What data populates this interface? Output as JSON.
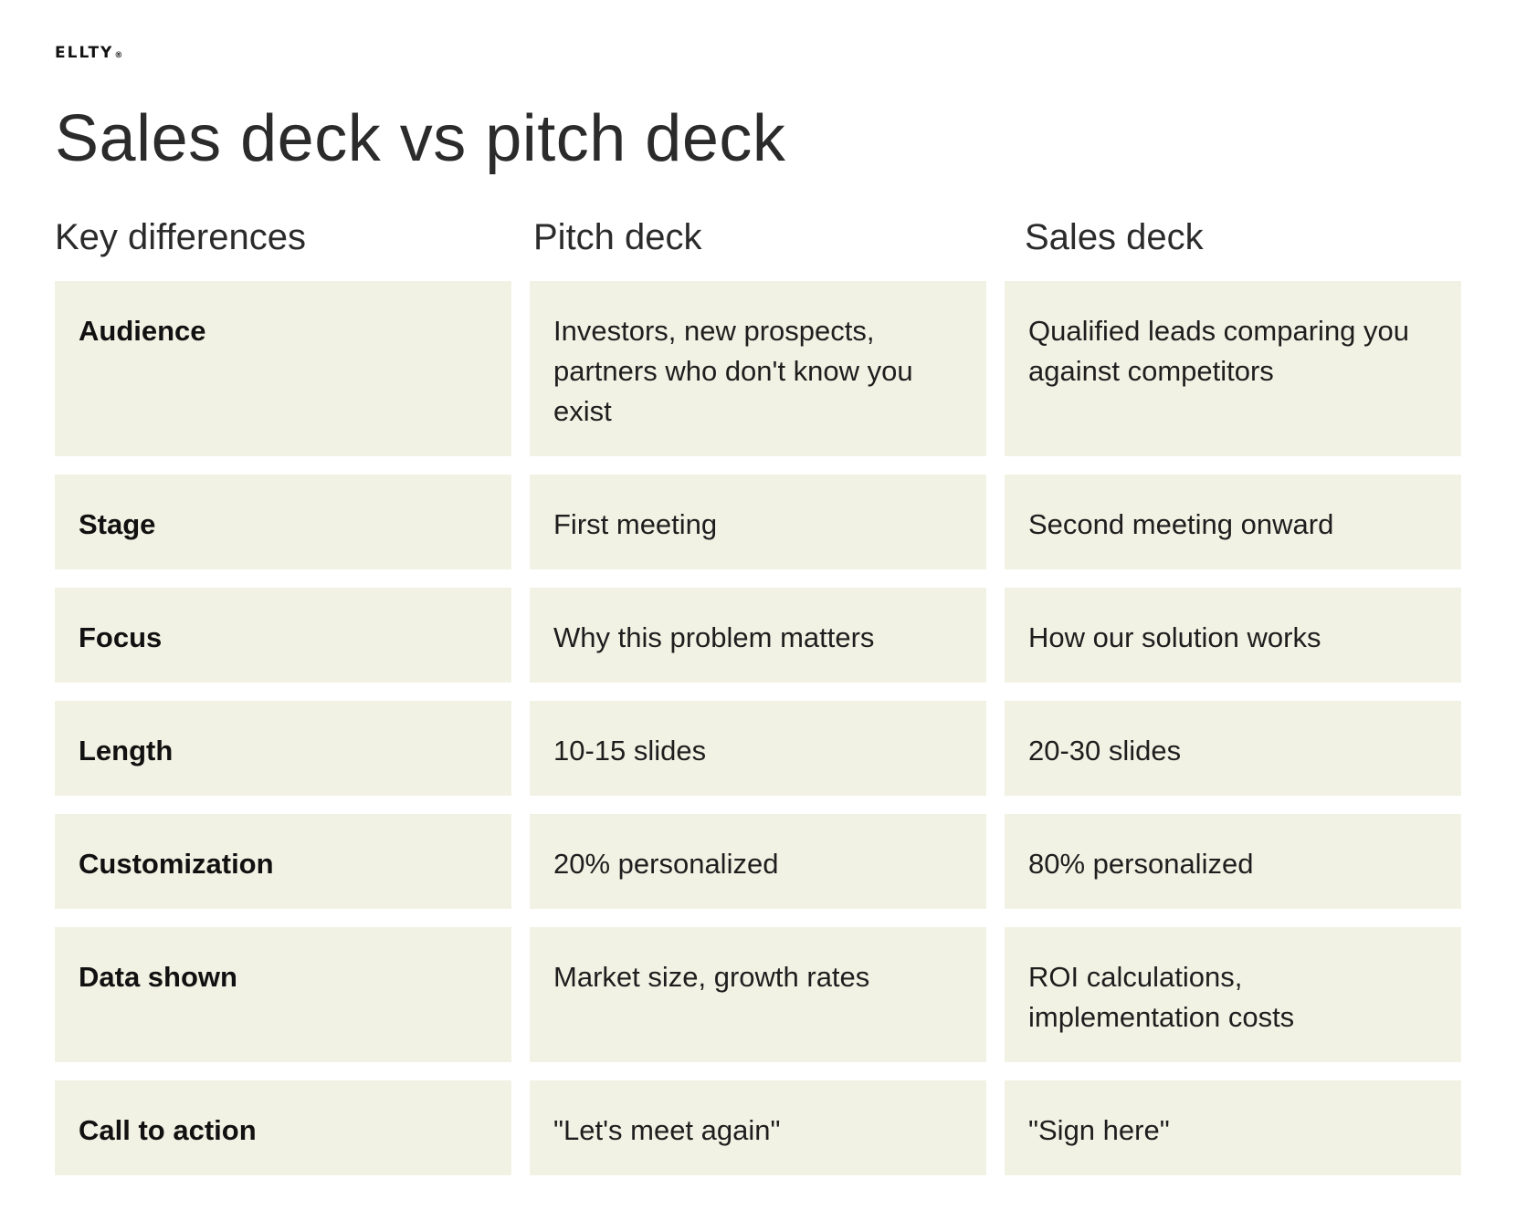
{
  "brand": {
    "logo_text": "ELLTY",
    "logo_mark": "®"
  },
  "title": "Sales deck vs pitch deck",
  "columns": {
    "key": "Key differences",
    "pitch": "Pitch deck",
    "sales": "Sales deck"
  },
  "rows": [
    {
      "label": "Audience",
      "pitch": "Investors, new prospects, partners who don't know you exist",
      "sales": "Qualified leads comparing you against competitors"
    },
    {
      "label": "Stage",
      "pitch": "First meeting",
      "sales": "Second meeting onward"
    },
    {
      "label": "Focus",
      "pitch": "Why this problem matters",
      "sales": "How our solution works"
    },
    {
      "label": "Length",
      "pitch": "10-15 slides",
      "sales": "20-30 slides"
    },
    {
      "label": "Customization",
      "pitch": "20% personalized",
      "sales": "80% personalized"
    },
    {
      "label": "Data shown",
      "pitch": "Market size, growth rates",
      "sales": "ROI calculations, implementation costs"
    },
    {
      "label": "Call to action",
      "pitch": "\"Let's meet again\"",
      "sales": "\"Sign here\""
    }
  ],
  "colors": {
    "cell_background": "#f2f2e4",
    "text": "#1e1e1e"
  }
}
